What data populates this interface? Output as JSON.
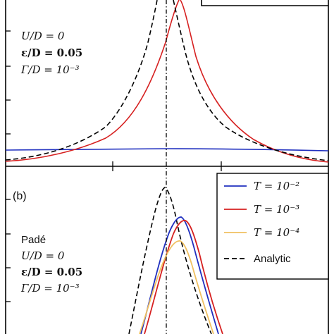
{
  "panels": {
    "top": {
      "annotations": [
        "U/D = 0",
        "ε/D = 0.05",
        "Γ/D = 10⁻³"
      ]
    },
    "bottom": {
      "panel_label": "(b)",
      "annotation_title": "Padé",
      "annotations": [
        "U/D = 0",
        "ε/D = 0.05",
        "Γ/D = 10⁻³"
      ],
      "legend": [
        {
          "label": "T = 10⁻²",
          "color": "#1f2fbf",
          "style": "solid"
        },
        {
          "label": "T = 10⁻³",
          "color": "#d62020",
          "style": "solid"
        },
        {
          "label": "T = 10⁻⁴",
          "color": "#f0c060",
          "style": "solid"
        },
        {
          "label": "Analytic",
          "color": "#000000",
          "style": "dashed"
        }
      ]
    }
  },
  "chart_data": [
    {
      "type": "line",
      "panel": "top",
      "title": "",
      "xlabel": "",
      "ylabel": "",
      "series": [
        {
          "name": "T = 10⁻²",
          "color": "#1f2fbf",
          "style": "solid",
          "x": [
            -1,
            -0.5,
            0,
            0.5,
            1
          ],
          "y": [
            0.02,
            0.022,
            0.023,
            0.022,
            0.02
          ]
        },
        {
          "name": "T = 10⁻³",
          "color": "#d62020",
          "style": "solid",
          "x": [
            -1,
            -0.6,
            -0.3,
            -0.1,
            0,
            0.05,
            0.1,
            0.2,
            0.4,
            0.7,
            1
          ],
          "y": [
            0.005,
            0.02,
            0.07,
            0.2,
            0.6,
            1.0,
            0.6,
            0.2,
            0.07,
            0.02,
            0.005
          ]
        },
        {
          "name": "Analytic",
          "color": "#000000",
          "style": "dashed",
          "x": [
            -1,
            -0.7,
            -0.4,
            -0.2,
            -0.05,
            0,
            0.05,
            0.2,
            0.4,
            0.7,
            1
          ],
          "y": [
            0.01,
            0.03,
            0.1,
            0.3,
            0.8,
            1.0,
            0.8,
            0.3,
            0.1,
            0.03,
            0.01
          ]
        }
      ]
    },
    {
      "type": "line",
      "panel": "bottom",
      "title": "",
      "xlabel": "",
      "ylabel": "",
      "series": [
        {
          "name": "T = 10⁻²",
          "color": "#1f2fbf",
          "style": "solid",
          "x": [
            -0.3,
            -0.15,
            0,
            0.1,
            0.2,
            0.35,
            0.5
          ],
          "y": [
            0.0,
            0.25,
            0.6,
            0.75,
            0.6,
            0.25,
            0.0
          ]
        },
        {
          "name": "T = 10⁻³",
          "color": "#d62020",
          "style": "solid",
          "x": [
            -0.3,
            -0.15,
            0,
            0.15,
            0.25,
            0.4,
            0.55
          ],
          "y": [
            0.0,
            0.25,
            0.55,
            0.72,
            0.6,
            0.25,
            0.0
          ]
        },
        {
          "name": "T = 10⁻⁴",
          "color": "#f0c060",
          "style": "solid",
          "x": [
            -0.3,
            -0.15,
            0,
            0.1,
            0.2,
            0.35,
            0.5
          ],
          "y": [
            0.0,
            0.2,
            0.45,
            0.58,
            0.45,
            0.2,
            0.0
          ]
        },
        {
          "name": "Analytic",
          "color": "#000000",
          "style": "dashed",
          "x": [
            -0.45,
            -0.3,
            -0.15,
            0,
            0.1,
            0.25,
            0.4
          ],
          "y": [
            0.0,
            0.2,
            0.55,
            1.0,
            0.55,
            0.2,
            0.0
          ]
        }
      ]
    }
  ]
}
